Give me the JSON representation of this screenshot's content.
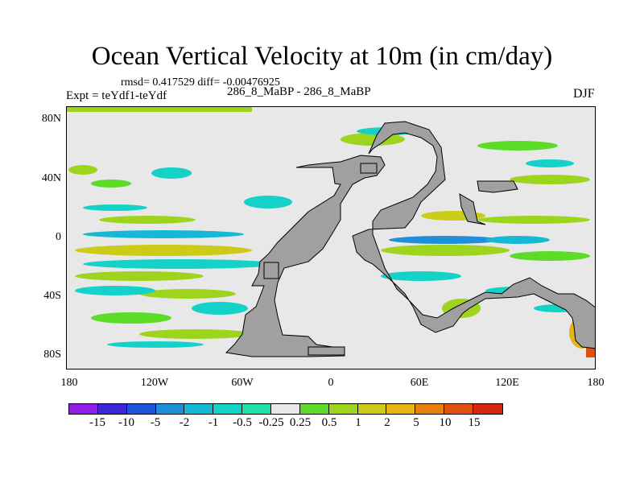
{
  "title": "Ocean Vertical Velocity at 10m (in cm/day)",
  "stats": "rmsd= 0.417529 diff= -0.00476925",
  "expt": "Expt = teYdf1-teYdf",
  "center_label": "286_8_MaBP - 286_8_MaBP",
  "season": "DJF",
  "y_axis_labels": [
    "80N",
    "40N",
    "0",
    "40S",
    "80S"
  ],
  "x_axis_labels": [
    "180",
    "120W",
    "60W",
    "0",
    "60E",
    "120E",
    "180"
  ],
  "colorbar": {
    "colors": [
      "#8f1fe6",
      "#3d28d6",
      "#1f55d8",
      "#1e8fd8",
      "#16b8d6",
      "#14d2c8",
      "#1fe0a8",
      "#e8e8e8",
      "#5cdc28",
      "#9ed41e",
      "#cccc18",
      "#e8b412",
      "#e88010",
      "#e0500e",
      "#d8280c"
    ],
    "levels": [
      "-15",
      "-10",
      "-5",
      "-2",
      "-1",
      "-0.5",
      "-0.25",
      "0.25",
      "0.5",
      "1",
      "2",
      "5",
      "10",
      "15"
    ]
  },
  "colors": {
    "land": "#a0a0a0",
    "ocean_background": "#e8e8e8"
  }
}
